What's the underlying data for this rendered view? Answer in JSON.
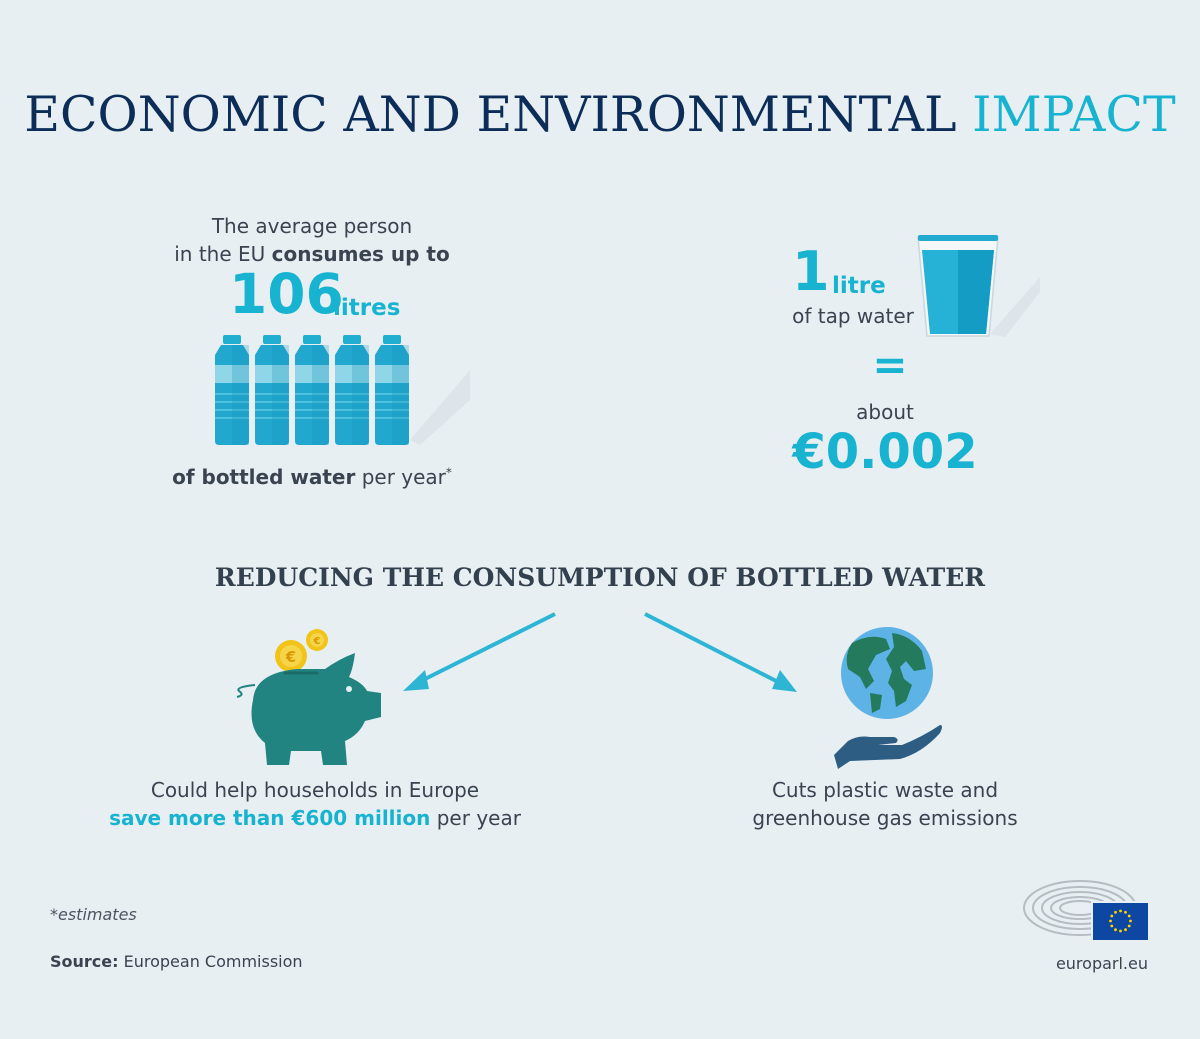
{
  "title": {
    "part1": "ECONOMIC AND ENVIRONMENTAL",
    "part2": "IMPACT"
  },
  "left": {
    "line1": "The average person",
    "line2_plain": "in the EU",
    "line2_bold": "consumes up to",
    "amount": "106",
    "unit": "litres",
    "line3_bold": "of bottled water",
    "line3_plain": "per year",
    "asterisk": "*",
    "bottle_count": 5
  },
  "right": {
    "amount": "1",
    "unit": "litre",
    "of_tap_water": "of tap water",
    "equals": "=",
    "about": "about",
    "price": "€0.002"
  },
  "subtitle": "REDUCING THE CONSUMPTION OF BOTTLED WATER",
  "benefit_left": {
    "line1": "Could help households in Europe",
    "line2_highlight": "save more than €600 million",
    "line2_plain": "per year"
  },
  "benefit_right": {
    "line1": "Cuts plastic waste and",
    "line2": "greenhouse gas emissions"
  },
  "footnote": "*estimates",
  "source": {
    "label": "Source:",
    "value": "European Commission"
  },
  "europarl": "europarl.eu",
  "coin_symbol": "€",
  "icons": [
    "water-bottle-icon",
    "water-glass-icon",
    "arrow-icon",
    "piggy-bank-icon",
    "euro-coin-icon",
    "globe-icon",
    "hand-icon",
    "parliament-logo-icon",
    "eu-flag-icon"
  ],
  "colors": {
    "navy": "#0c2d57",
    "teal": "#17b3d0",
    "text": "#3a4350",
    "piggy": "#218480",
    "hand": "#2d5d83",
    "background": "#e8eff3",
    "eu_flag": "#0e47a1",
    "eu_star": "#ffd400"
  }
}
